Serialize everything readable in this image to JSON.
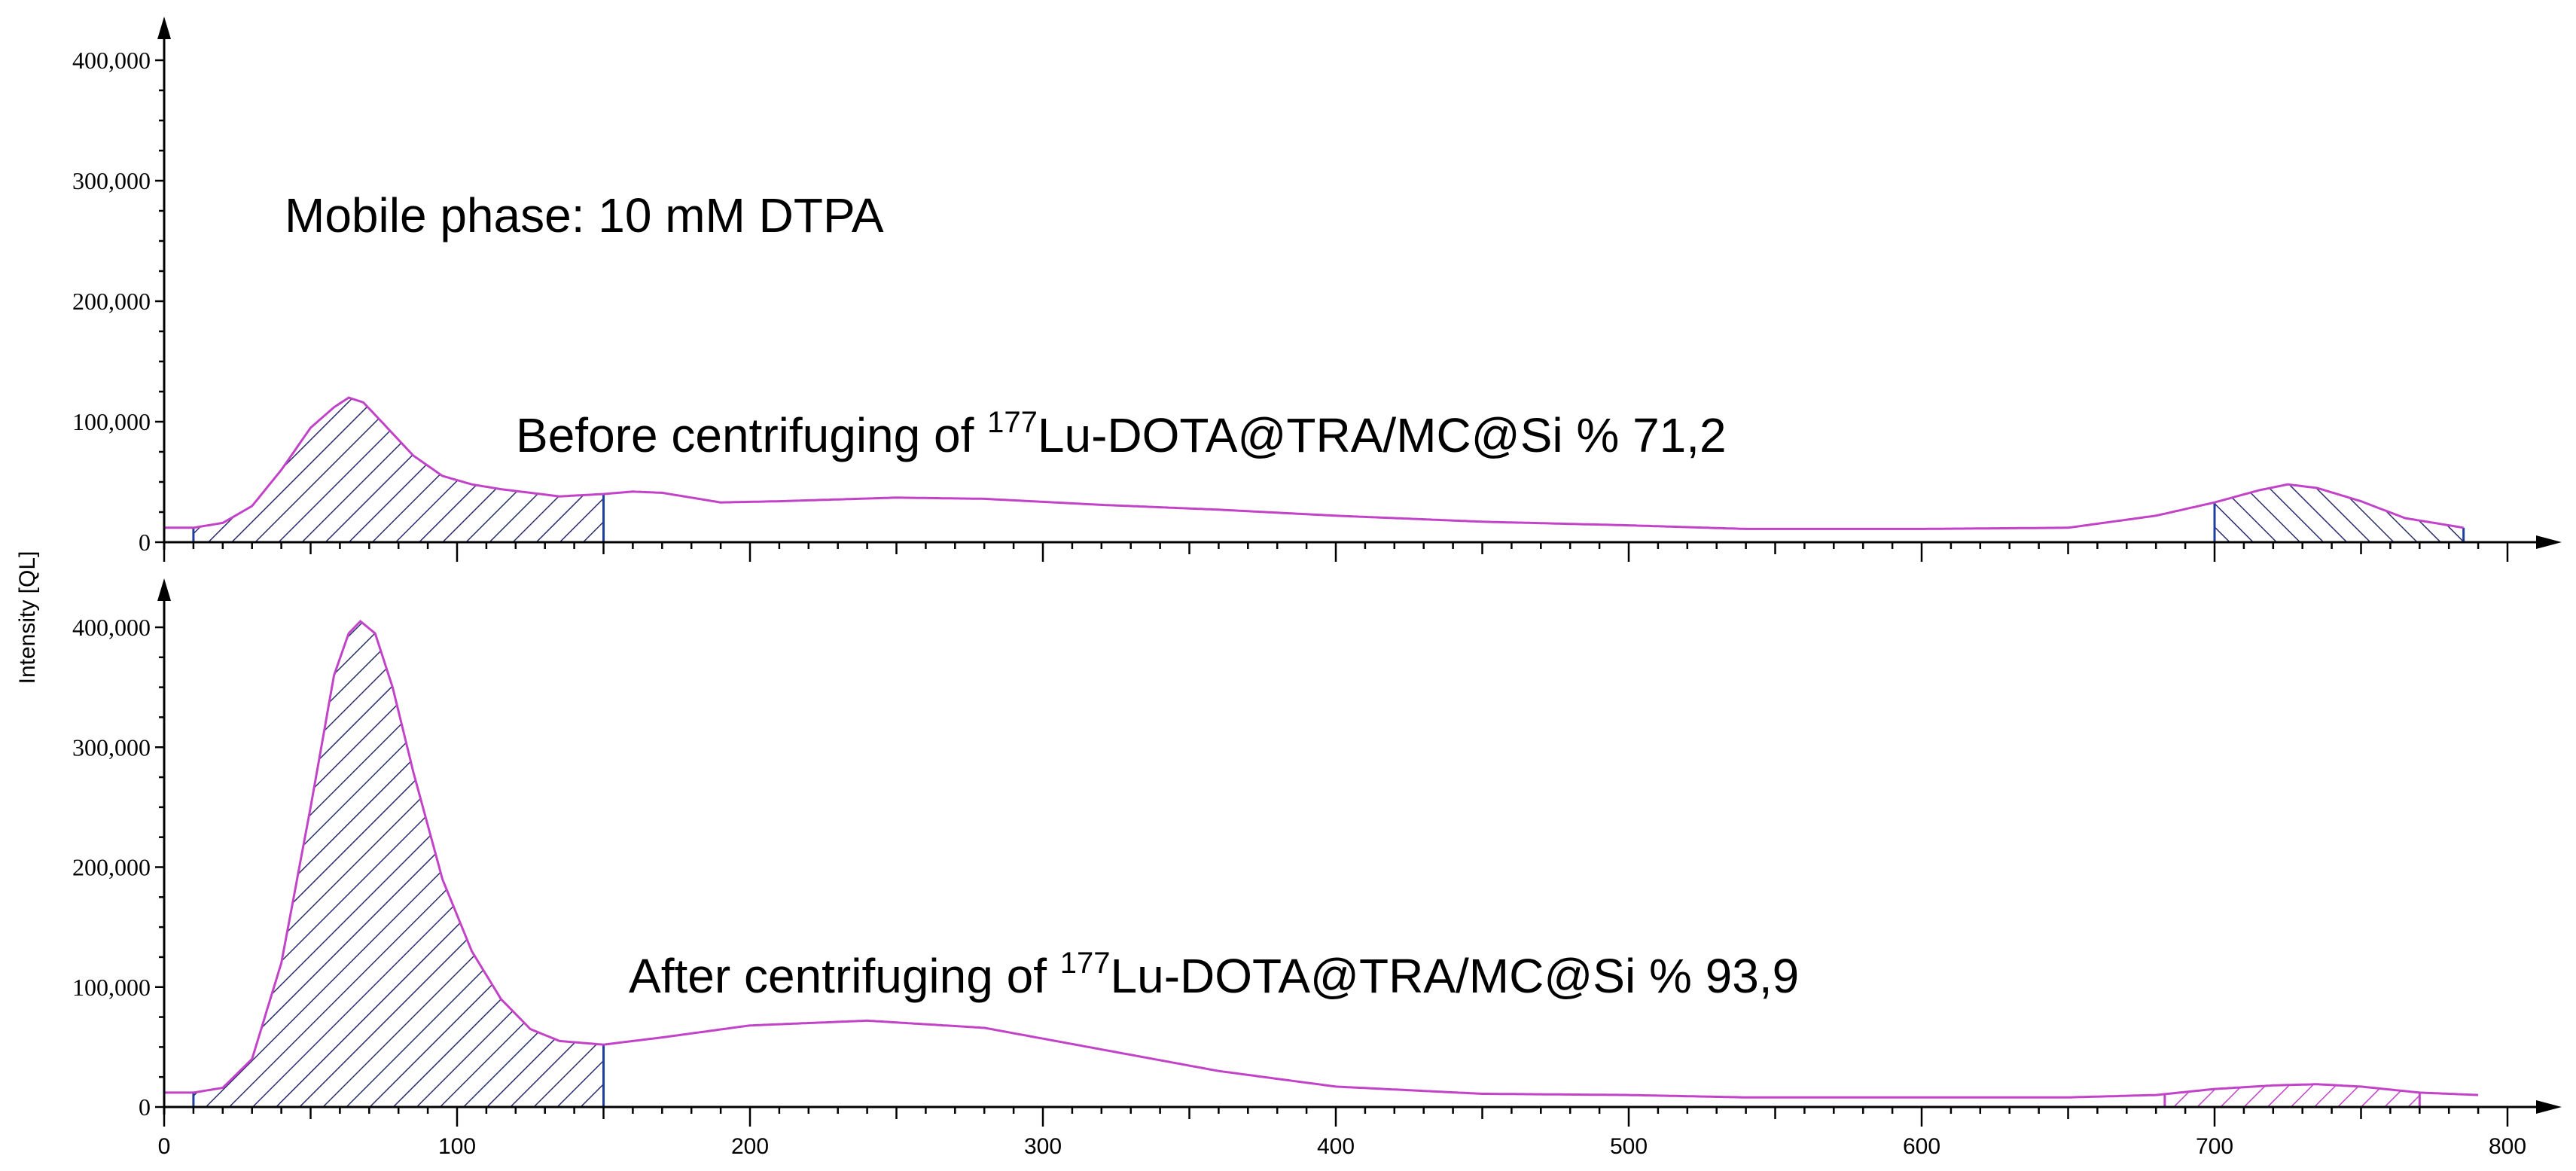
{
  "chart_data": [
    {
      "type": "area",
      "panel": "top",
      "title": "",
      "xlabel": "",
      "ylabel": "Intensity [QL]",
      "xlim": [
        0,
        800
      ],
      "ylim": [
        0,
        400000
      ],
      "y_ticks": [
        0,
        100000,
        200000,
        300000,
        400000
      ],
      "y_tick_labels": [
        "0",
        "100,000",
        "200,000",
        "300,000",
        "400,000"
      ],
      "x_ticks": [
        0,
        100,
        200,
        300,
        400,
        500,
        600,
        700,
        800
      ],
      "x_tick_labels": [],
      "grid": false,
      "legend": "none",
      "annotations": [
        {
          "text_parts": [
            "Mobile phase: 10 mM DTPA"
          ]
        },
        {
          "text_parts": [
            "Before centrifuging of ",
            "177",
            "Lu-DOTA@TRA/MC@Si    % 71,2"
          ]
        }
      ],
      "series": [
        {
          "x": [
            0,
            10,
            20,
            30,
            40,
            50,
            58,
            63,
            68,
            75,
            85,
            95,
            105,
            115,
            125,
            135,
            150,
            160,
            170,
            190,
            210,
            250,
            280,
            320,
            360,
            400,
            450,
            500,
            540,
            600,
            650,
            680,
            700,
            715,
            725,
            735,
            750,
            765,
            785
          ],
          "y": [
            12000,
            12000,
            16000,
            30000,
            60000,
            95000,
            112000,
            120000,
            116000,
            98000,
            72000,
            55000,
            48000,
            44000,
            41000,
            38000,
            40000,
            42000,
            41000,
            33000,
            34000,
            37000,
            36000,
            31000,
            27000,
            22000,
            17000,
            14000,
            11000,
            11000,
            12000,
            22000,
            33000,
            43000,
            48000,
            45000,
            34000,
            20000,
            12000
          ]
        }
      ],
      "regions_of_interest": [
        {
          "x_start": 10,
          "x_end": 150,
          "hatch": "dark-blue"
        },
        {
          "x_start": 700,
          "x_end": 785,
          "hatch": "dark-blue"
        }
      ]
    },
    {
      "type": "area",
      "panel": "bottom",
      "title": "",
      "xlabel": "",
      "ylabel": "Intensity [QL]",
      "xlim": [
        0,
        800
      ],
      "ylim": [
        0,
        400000
      ],
      "y_ticks": [
        0,
        100000,
        200000,
        300000,
        400000
      ],
      "y_tick_labels": [
        "0",
        "100,000",
        "200,000",
        "300,000",
        "400,000"
      ],
      "x_ticks": [
        0,
        100,
        200,
        300,
        400,
        500,
        600,
        700,
        800
      ],
      "x_tick_labels": [
        "0",
        "100",
        "200",
        "300",
        "400",
        "500",
        "600",
        "700",
        "800"
      ],
      "grid": false,
      "legend": "none",
      "annotations": [
        {
          "text_parts": [
            "After centrifuging of ",
            "177",
            "Lu-DOTA@TRA/MC@Si    % 93,9"
          ]
        }
      ],
      "series": [
        {
          "x": [
            0,
            10,
            20,
            30,
            40,
            50,
            58,
            63,
            67,
            72,
            78,
            85,
            95,
            105,
            115,
            125,
            135,
            150,
            170,
            200,
            240,
            280,
            320,
            360,
            400,
            450,
            500,
            540,
            600,
            650,
            680,
            700,
            720,
            735,
            750,
            770,
            790
          ],
          "y": [
            12000,
            12000,
            16000,
            40000,
            120000,
            250000,
            360000,
            395000,
            405000,
            395000,
            350000,
            280000,
            190000,
            130000,
            90000,
            65000,
            55000,
            52000,
            58000,
            68000,
            72000,
            66000,
            48000,
            30000,
            17000,
            11000,
            10000,
            8000,
            8000,
            8000,
            10000,
            15000,
            18000,
            19000,
            17000,
            12000,
            10000
          ]
        }
      ],
      "regions_of_interest": [
        {
          "x_start": 10,
          "x_end": 150,
          "hatch": "dark-blue"
        },
        {
          "x_start": 683,
          "x_end": 770,
          "hatch": "magenta"
        }
      ]
    }
  ]
}
